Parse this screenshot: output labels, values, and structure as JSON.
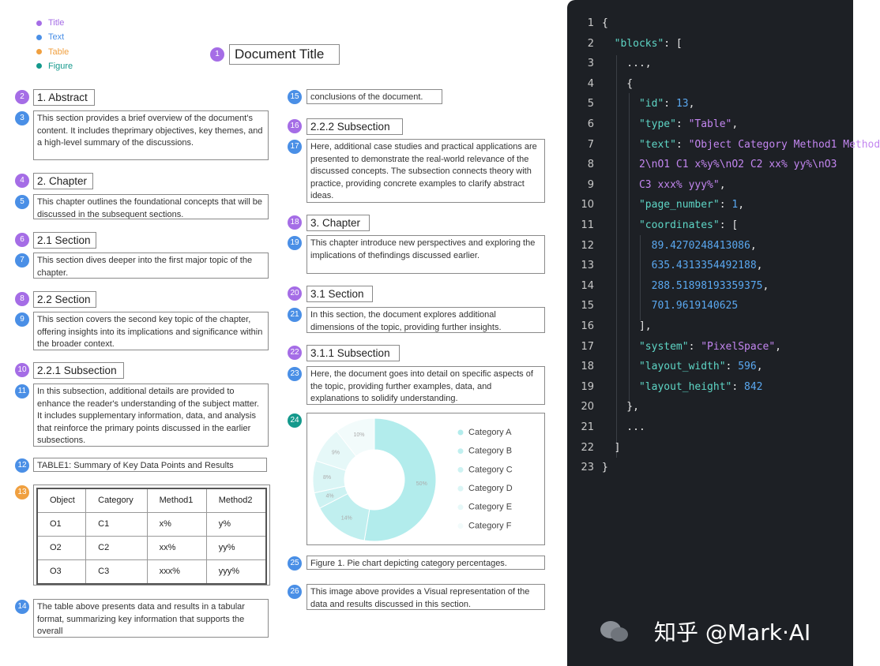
{
  "legend": [
    {
      "label": "Title",
      "color": "#a56de6"
    },
    {
      "label": "Text",
      "color": "#4a8fe6"
    },
    {
      "label": "Table",
      "color": "#f0a040"
    },
    {
      "label": "Figure",
      "color": "#14998c"
    }
  ],
  "blocks": [
    {
      "id": 1,
      "kind": "Title",
      "text": "Document Title"
    },
    {
      "id": 2,
      "kind": "Title",
      "text": "1. Abstract"
    },
    {
      "id": 3,
      "kind": "Text",
      "text": "This section provides a brief overview of the document's content. It includes theprimary objectives, key themes, and a high-level summary of the discussions."
    },
    {
      "id": 4,
      "kind": "Title",
      "text": "2. Chapter"
    },
    {
      "id": 5,
      "kind": "Text",
      "text": "This chapter outlines the foundational concepts that will be discussed in the subsequent sections."
    },
    {
      "id": 6,
      "kind": "Title",
      "text": "2.1 Section"
    },
    {
      "id": 7,
      "kind": "Text",
      "text": "This section dives deeper into the first major topic of the chapter."
    },
    {
      "id": 8,
      "kind": "Title",
      "text": "2.2 Section"
    },
    {
      "id": 9,
      "kind": "Text",
      "text": "This section covers the second key topic of the chapter, offering insights into its implications and significance within the broader context."
    },
    {
      "id": 10,
      "kind": "Title",
      "text": "2.2.1 Subsection"
    },
    {
      "id": 11,
      "kind": "Text",
      "text": "In this subsection, additional details are provided to enhance the reader's understanding of the subject matter. It includes supplementary information, data, and analysis that reinforce the primary points discussed in the earlier subsections."
    },
    {
      "id": 12,
      "kind": "Text",
      "text": "TABLE1: Summary of Key Data Points and Results"
    },
    {
      "id": 13,
      "kind": "Table",
      "table": {
        "header": [
          "Object",
          "Category",
          "Method1",
          "Method2"
        ],
        "rows": [
          [
            "O1",
            "C1",
            "x%",
            "y%"
          ],
          [
            "O2",
            "C2",
            "xx%",
            "yy%"
          ],
          [
            "O3",
            "C3",
            "xxx%",
            "yyy%"
          ]
        ]
      }
    },
    {
      "id": 14,
      "kind": "Text",
      "text": "The table above presents data and results in a tabular format, summarizing key information that supports the overall"
    },
    {
      "id": 15,
      "kind": "Text",
      "text": "conclusions of the document."
    },
    {
      "id": 16,
      "kind": "Title",
      "text": "2.2.2 Subsection"
    },
    {
      "id": 17,
      "kind": "Text",
      "text": "Here, additional case studies and practical applications are presented to demonstrate the real-world relevance of the discussed concepts. The subsection connects theory with practice, providing concrete examples to clarify abstract ideas."
    },
    {
      "id": 18,
      "kind": "Title",
      "text": "3. Chapter"
    },
    {
      "id": 19,
      "kind": "Text",
      "text": "This chapter introduce new perspectives and exploring the implications of thefindings discussed earlier."
    },
    {
      "id": 20,
      "kind": "Title",
      "text": "3.1 Section"
    },
    {
      "id": 21,
      "kind": "Text",
      "text": "In this section, the document explores additional dimensions of the topic, providing further insights."
    },
    {
      "id": 22,
      "kind": "Title",
      "text": "3.1.1 Subsection"
    },
    {
      "id": 23,
      "kind": "Text",
      "text": "Here, the document goes into detail on specific aspects of the topic, providing further examples, data, and explanations to solidify understanding."
    },
    {
      "id": 24,
      "kind": "Figure",
      "chart": {
        "type": "pie",
        "categories": [
          "Category A",
          "Category B",
          "Category C",
          "Category D",
          "Category E",
          "Category F"
        ],
        "values": [
          50,
          14,
          4,
          8,
          9,
          10
        ],
        "value_labels": [
          "50%",
          "14%",
          "4%",
          "8%",
          "9%",
          "10%"
        ],
        "colors": [
          "#b2ecec",
          "#c0efef",
          "#cdf2f2",
          "#daf5f5",
          "#e6f8f8",
          "#f2fbfb"
        ]
      }
    },
    {
      "id": 25,
      "kind": "Text",
      "text": "Figure 1. Pie chart depicting category percentages."
    },
    {
      "id": 26,
      "kind": "Text",
      "text": "This image above provides a Visual representation of the data and results discussed in this section."
    }
  ],
  "code": {
    "lines": [
      {
        "number": 1,
        "tokens": [
          {
            "text": "{",
            "color": "#e6e6e6"
          }
        ]
      },
      {
        "number": 2,
        "tokens": [
          {
            "text": "  \"blocks\"",
            "color": "#5ed6c6"
          },
          {
            "text": ": [",
            "color": "#e6e6e6"
          }
        ]
      },
      {
        "number": 3,
        "tokens": [
          {
            "text": "    ...,",
            "color": "#e6e6e6"
          }
        ]
      },
      {
        "number": 4,
        "tokens": [
          {
            "text": "    {",
            "color": "#e6e6e6"
          }
        ]
      },
      {
        "number": 5,
        "tokens": [
          {
            "text": "      \"id\"",
            "color": "#5ed6c6"
          },
          {
            "text": ": ",
            "color": "#e6e6e6"
          },
          {
            "text": "13",
            "color": "#5aa8f0"
          },
          {
            "text": ",",
            "color": "#e6e6e6"
          }
        ]
      },
      {
        "number": 6,
        "tokens": [
          {
            "text": "      \"type\"",
            "color": "#5ed6c6"
          },
          {
            "text": ": ",
            "color": "#e6e6e6"
          },
          {
            "text": "\"Table\"",
            "color": "#c386f0"
          },
          {
            "text": ",",
            "color": "#e6e6e6"
          }
        ]
      },
      {
        "number": 7,
        "tokens": [
          {
            "text": "      \"text\"",
            "color": "#5ed6c6"
          },
          {
            "text": ": ",
            "color": "#e6e6e6"
          },
          {
            "text": "\"Object Category Method1 Method",
            "color": "#c386f0"
          }
        ]
      },
      {
        "number": 8,
        "tokens": [
          {
            "text": "      2\\nO1 C1 x%y%\\nO2 C2 xx% yy%\\nO3",
            "color": "#c386f0"
          }
        ]
      },
      {
        "number": 9,
        "tokens": [
          {
            "text": "      C3 xxx% yyy%\"",
            "color": "#c386f0"
          },
          {
            "text": ",",
            "color": "#e6e6e6"
          }
        ]
      },
      {
        "number": 10,
        "tokens": [
          {
            "text": "      \"page_number\"",
            "color": "#5ed6c6"
          },
          {
            "text": ": ",
            "color": "#e6e6e6"
          },
          {
            "text": "1",
            "color": "#5aa8f0"
          },
          {
            "text": ",",
            "color": "#e6e6e6"
          }
        ]
      },
      {
        "number": 11,
        "tokens": [
          {
            "text": "      \"coordinates\"",
            "color": "#5ed6c6"
          },
          {
            "text": ": [",
            "color": "#e6e6e6"
          }
        ]
      },
      {
        "number": 12,
        "tokens": [
          {
            "text": "        89.4270248413086",
            "color": "#5aa8f0"
          },
          {
            "text": ",",
            "color": "#e6e6e6"
          }
        ]
      },
      {
        "number": 13,
        "tokens": [
          {
            "text": "        635.4313354492188",
            "color": "#5aa8f0"
          },
          {
            "text": ",",
            "color": "#e6e6e6"
          }
        ]
      },
      {
        "number": 14,
        "tokens": [
          {
            "text": "        288.51898193359375",
            "color": "#5aa8f0"
          },
          {
            "text": ",",
            "color": "#e6e6e6"
          }
        ]
      },
      {
        "number": 15,
        "tokens": [
          {
            "text": "        701.9619140625",
            "color": "#5aa8f0"
          }
        ]
      },
      {
        "number": 16,
        "tokens": [
          {
            "text": "      ],",
            "color": "#e6e6e6"
          }
        ]
      },
      {
        "number": 17,
        "tokens": [
          {
            "text": "      \"system\"",
            "color": "#5ed6c6"
          },
          {
            "text": ": ",
            "color": "#e6e6e6"
          },
          {
            "text": "\"PixelSpace\"",
            "color": "#c386f0"
          },
          {
            "text": ",",
            "color": "#e6e6e6"
          }
        ]
      },
      {
        "number": 18,
        "tokens": [
          {
            "text": "      \"layout_width\"",
            "color": "#5ed6c6"
          },
          {
            "text": ": ",
            "color": "#e6e6e6"
          },
          {
            "text": "596",
            "color": "#5aa8f0"
          },
          {
            "text": ",",
            "color": "#e6e6e6"
          }
        ]
      },
      {
        "number": 19,
        "tokens": [
          {
            "text": "      \"layout_height\"",
            "color": "#5ed6c6"
          },
          {
            "text": ": ",
            "color": "#e6e6e6"
          },
          {
            "text": "842",
            "color": "#5aa8f0"
          }
        ]
      },
      {
        "number": 20,
        "tokens": [
          {
            "text": "    },",
            "color": "#e6e6e6"
          }
        ]
      },
      {
        "number": 21,
        "tokens": [
          {
            "text": "    ...",
            "color": "#e6e6e6"
          }
        ]
      },
      {
        "number": 22,
        "tokens": [
          {
            "text": "  ]",
            "color": "#e6e6e6"
          }
        ]
      },
      {
        "number": 23,
        "tokens": [
          {
            "text": "}",
            "color": "#e6e6e6"
          }
        ]
      }
    ]
  },
  "watermark": "知乎 @Mark·AI"
}
